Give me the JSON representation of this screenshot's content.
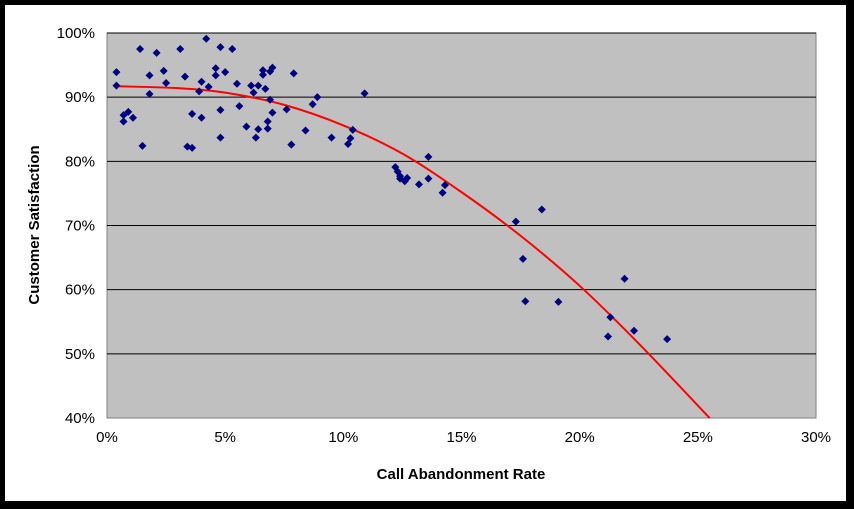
{
  "chart_data": {
    "type": "scatter",
    "title": "",
    "xlabel": "Call Abandonment Rate",
    "ylabel": "Customer Satisfaction",
    "xlim": [
      0,
      0.3
    ],
    "ylim": [
      0.4,
      1.0
    ],
    "x_ticks": [
      "0%",
      "5%",
      "10%",
      "15%",
      "20%",
      "25%",
      "30%"
    ],
    "y_ticks": [
      "40%",
      "50%",
      "60%",
      "70%",
      "80%",
      "90%",
      "100%"
    ],
    "grid": "horizontal",
    "legend": "none",
    "colors": {
      "plot_background": "#C0C0C0",
      "points": "#000080",
      "trendline": "#FF0000",
      "frame": "#000000"
    },
    "series": [
      {
        "marker": "diamond",
        "points": [
          [
            0.004,
            0.939
          ],
          [
            0.004,
            0.918
          ],
          [
            0.007,
            0.872
          ],
          [
            0.007,
            0.862
          ],
          [
            0.009,
            0.877
          ],
          [
            0.011,
            0.868
          ],
          [
            0.014,
            0.975
          ],
          [
            0.015,
            0.824
          ],
          [
            0.018,
            0.934
          ],
          [
            0.018,
            0.905
          ],
          [
            0.021,
            0.969
          ],
          [
            0.024,
            0.941
          ],
          [
            0.025,
            0.922
          ],
          [
            0.031,
            0.975
          ],
          [
            0.033,
            0.932
          ],
          [
            0.034,
            0.823
          ],
          [
            0.036,
            0.874
          ],
          [
            0.036,
            0.821
          ],
          [
            0.039,
            0.909
          ],
          [
            0.04,
            0.868
          ],
          [
            0.04,
            0.924
          ],
          [
            0.042,
            0.991
          ],
          [
            0.043,
            0.916
          ],
          [
            0.046,
            0.945
          ],
          [
            0.046,
            0.934
          ],
          [
            0.048,
            0.978
          ],
          [
            0.048,
            0.837
          ],
          [
            0.048,
            0.88
          ],
          [
            0.05,
            0.939
          ],
          [
            0.053,
            0.975
          ],
          [
            0.055,
            0.921
          ],
          [
            0.056,
            0.886
          ],
          [
            0.059,
            0.854
          ],
          [
            0.061,
            0.918
          ],
          [
            0.062,
            0.907
          ],
          [
            0.063,
            0.837
          ],
          [
            0.064,
            0.918
          ],
          [
            0.064,
            0.85
          ],
          [
            0.066,
            0.935
          ],
          [
            0.066,
            0.942
          ],
          [
            0.067,
            0.913
          ],
          [
            0.068,
            0.862
          ],
          [
            0.068,
            0.851
          ],
          [
            0.069,
            0.896
          ],
          [
            0.069,
            0.94
          ],
          [
            0.07,
            0.946
          ],
          [
            0.07,
            0.876
          ],
          [
            0.076,
            0.881
          ],
          [
            0.078,
            0.826
          ],
          [
            0.079,
            0.937
          ],
          [
            0.084,
            0.848
          ],
          [
            0.087,
            0.889
          ],
          [
            0.089,
            0.9
          ],
          [
            0.095,
            0.837
          ],
          [
            0.102,
            0.827
          ],
          [
            0.103,
            0.836
          ],
          [
            0.104,
            0.849
          ],
          [
            0.109,
            0.906
          ],
          [
            0.122,
            0.791
          ],
          [
            0.123,
            0.784
          ],
          [
            0.124,
            0.777
          ],
          [
            0.124,
            0.773
          ],
          [
            0.126,
            0.769
          ],
          [
            0.127,
            0.774
          ],
          [
            0.132,
            0.764
          ],
          [
            0.136,
            0.807
          ],
          [
            0.136,
            0.773
          ],
          [
            0.142,
            0.751
          ],
          [
            0.143,
            0.763
          ],
          [
            0.173,
            0.706
          ],
          [
            0.176,
            0.648
          ],
          [
            0.177,
            0.582
          ],
          [
            0.184,
            0.725
          ],
          [
            0.191,
            0.581
          ],
          [
            0.212,
            0.527
          ],
          [
            0.213,
            0.557
          ],
          [
            0.219,
            0.617
          ],
          [
            0.223,
            0.536
          ],
          [
            0.237,
            0.523
          ]
        ]
      }
    ],
    "trendline": {
      "type": "polynomial",
      "color": "#FF0000",
      "x": [
        0.005,
        0.03,
        0.05,
        0.075,
        0.1,
        0.125,
        0.15,
        0.175,
        0.2,
        0.225,
        0.255
      ],
      "y": [
        0.917,
        0.914,
        0.907,
        0.888,
        0.856,
        0.812,
        0.752,
        0.684,
        0.606,
        0.516,
        0.4
      ]
    }
  }
}
